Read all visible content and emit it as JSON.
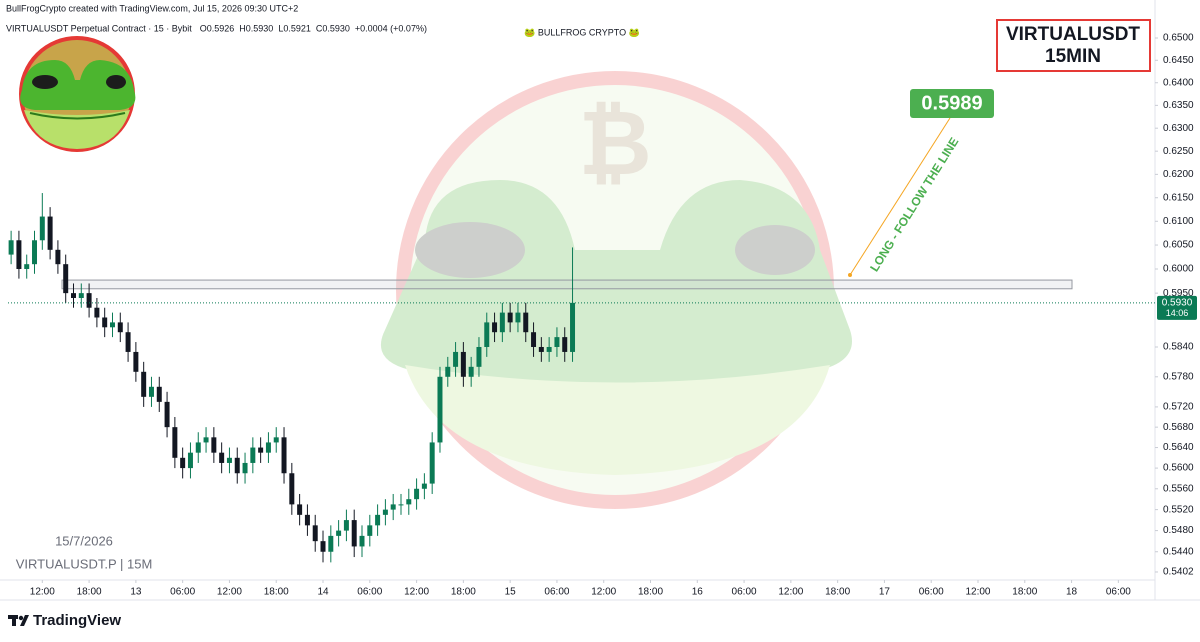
{
  "header": {
    "credit": "BullFrogCrypto created with TradingView.com, Jul 15, 2026 09:30 UTC+2",
    "symbol": "VIRTUALUSDT Perpetual Contract · 15 · Bybit",
    "ohlc": [
      "O0.5926",
      "H0.5930",
      "L0.5921",
      "C0.5930",
      "+0.0004 (+0.07%)"
    ],
    "watermark": "🐸 BULLFROG CRYPTO 🐸"
  },
  "chart_data": {
    "type": "candlestick",
    "log_scale": true,
    "title_box": [
      "VIRTUALUSDT",
      "15MIN"
    ],
    "date": "15/7/2026",
    "ticker": "VIRTUALUSDT.P | 15M",
    "target": "0.5989",
    "note": "LONG - FOLLOW THE LINE",
    "up_color": "#0b7a55",
    "down_color": "#131722",
    "x": [
      8,
      9,
      10,
      11,
      12,
      13,
      14,
      15,
      16,
      17,
      18,
      19,
      20,
      21,
      22,
      23,
      24,
      25,
      26,
      27,
      28,
      29,
      30,
      31,
      32,
      33,
      34,
      35,
      36,
      37,
      38,
      39,
      40,
      41,
      42,
      43,
      44,
      45,
      46,
      47,
      48,
      49,
      50,
      51,
      52,
      53,
      54,
      55,
      56,
      57,
      58,
      59,
      60,
      61,
      62,
      63,
      64,
      65,
      66,
      67,
      68,
      69,
      70,
      71,
      72,
      73,
      74,
      75,
      76,
      77,
      78,
      79,
      80
    ],
    "open": [
      0.603,
      0.606,
      0.6,
      0.601,
      0.606,
      0.611,
      0.604,
      0.601,
      0.595,
      0.594,
      0.595,
      0.592,
      0.59,
      0.588,
      0.589,
      0.587,
      0.583,
      0.579,
      0.574,
      0.576,
      0.573,
      0.568,
      0.562,
      0.56,
      0.563,
      0.565,
      0.566,
      0.563,
      0.561,
      0.562,
      0.559,
      0.561,
      0.564,
      0.563,
      0.565,
      0.566,
      0.559,
      0.553,
      0.551,
      0.549,
      0.546,
      0.544,
      0.547,
      0.548,
      0.55,
      0.545,
      0.547,
      0.549,
      0.551,
      0.552,
      0.553,
      0.553,
      0.554,
      0.556,
      0.557,
      0.565,
      0.578,
      0.58,
      0.583,
      0.578,
      0.58,
      0.584,
      0.589,
      0.587,
      0.591,
      0.589,
      0.591,
      0.587,
      0.584,
      0.583,
      0.584,
      0.586,
      0.583
    ],
    "high": [
      0.608,
      0.608,
      0.603,
      0.608,
      0.616,
      0.613,
      0.606,
      0.603,
      0.597,
      0.597,
      0.597,
      0.594,
      0.592,
      0.591,
      0.591,
      0.589,
      0.585,
      0.581,
      0.578,
      0.578,
      0.575,
      0.57,
      0.564,
      0.565,
      0.567,
      0.568,
      0.568,
      0.565,
      0.564,
      0.564,
      0.563,
      0.566,
      0.566,
      0.567,
      0.568,
      0.568,
      0.561,
      0.555,
      0.553,
      0.551,
      0.548,
      0.549,
      0.55,
      0.552,
      0.552,
      0.549,
      0.551,
      0.553,
      0.554,
      0.555,
      0.555,
      0.556,
      0.558,
      0.559,
      0.567,
      0.58,
      0.582,
      0.585,
      0.585,
      0.582,
      0.586,
      0.591,
      0.591,
      0.593,
      0.593,
      0.593,
      0.593,
      0.589,
      0.586,
      0.586,
      0.588,
      0.588,
      0.6045
    ],
    "low": [
      0.601,
      0.598,
      0.598,
      0.599,
      0.604,
      0.602,
      0.599,
      0.593,
      0.592,
      0.592,
      0.59,
      0.588,
      0.586,
      0.586,
      0.585,
      0.581,
      0.577,
      0.572,
      0.572,
      0.571,
      0.566,
      0.56,
      0.558,
      0.558,
      0.561,
      0.563,
      0.561,
      0.559,
      0.559,
      0.557,
      0.557,
      0.559,
      0.561,
      0.561,
      0.563,
      0.557,
      0.551,
      0.549,
      0.547,
      0.544,
      0.542,
      0.542,
      0.545,
      0.546,
      0.543,
      0.543,
      0.545,
      0.547,
      0.549,
      0.55,
      0.551,
      0.551,
      0.552,
      0.554,
      0.555,
      0.563,
      0.576,
      0.578,
      0.576,
      0.576,
      0.578,
      0.582,
      0.585,
      0.585,
      0.587,
      0.587,
      0.585,
      0.582,
      0.581,
      0.581,
      0.582,
      0.581,
      0.581
    ],
    "close": [
      0.606,
      0.6,
      0.601,
      0.606,
      0.611,
      0.604,
      0.601,
      0.595,
      0.594,
      0.595,
      0.592,
      0.59,
      0.588,
      0.589,
      0.587,
      0.583,
      0.579,
      0.574,
      0.576,
      0.573,
      0.568,
      0.562,
      0.56,
      0.563,
      0.565,
      0.566,
      0.563,
      0.561,
      0.562,
      0.559,
      0.561,
      0.564,
      0.563,
      0.565,
      0.566,
      0.559,
      0.553,
      0.551,
      0.549,
      0.546,
      0.544,
      0.547,
      0.548,
      0.55,
      0.545,
      0.547,
      0.549,
      0.551,
      0.552,
      0.553,
      0.553,
      0.554,
      0.556,
      0.557,
      0.565,
      0.578,
      0.58,
      0.583,
      0.578,
      0.58,
      0.584,
      0.589,
      0.587,
      0.591,
      0.589,
      0.591,
      0.587,
      0.584,
      0.583,
      0.584,
      0.586,
      0.583,
      0.593
    ],
    "zone": [
      0.5959,
      0.5977
    ],
    "last_price": {
      "value": 0.593,
      "label": "0.5930"
    },
    "countdown": "14:06",
    "xlim": [
      7.6,
      154.7
    ],
    "xticks": [
      {
        "value": 12,
        "label": "12:00"
      },
      {
        "value": 18,
        "label": "18:00"
      },
      {
        "value": 24,
        "label": "13"
      },
      {
        "value": 30,
        "label": "06:00"
      },
      {
        "value": 36,
        "label": "12:00"
      },
      {
        "value": 42,
        "label": "18:00"
      },
      {
        "value": 48,
        "label": "14"
      },
      {
        "value": 54,
        "label": "06:00"
      },
      {
        "value": 60,
        "label": "12:00"
      },
      {
        "value": 66,
        "label": "18:00"
      },
      {
        "value": 72,
        "label": "15"
      },
      {
        "value": 78,
        "label": "06:00"
      },
      {
        "value": 84,
        "label": "12:00"
      },
      {
        "value": 90,
        "label": "18:00"
      },
      {
        "value": 96,
        "label": "16"
      },
      {
        "value": 102,
        "label": "06:00"
      },
      {
        "value": 108,
        "label": "12:00"
      },
      {
        "value": 114,
        "label": "18:00"
      },
      {
        "value": 120,
        "label": "17"
      },
      {
        "value": 126,
        "label": "06:00"
      },
      {
        "value": 132,
        "label": "12:00"
      },
      {
        "value": 138,
        "label": "18:00"
      },
      {
        "value": 144,
        "label": "18"
      },
      {
        "value": 150,
        "label": "06:00"
      }
    ],
    "ylim": [
      0.5387,
      0.6552
    ],
    "yticks": [
      {
        "value": 0.65,
        "label": "0.6500"
      },
      {
        "value": 0.645,
        "label": "0.6450"
      },
      {
        "value": 0.64,
        "label": "0.6400"
      },
      {
        "value": 0.635,
        "label": "0.6350"
      },
      {
        "value": 0.63,
        "label": "0.6300"
      },
      {
        "value": 0.625,
        "label": "0.6250"
      },
      {
        "value": 0.62,
        "label": "0.6200"
      },
      {
        "value": 0.615,
        "label": "0.6150"
      },
      {
        "value": 0.61,
        "label": "0.6100"
      },
      {
        "value": 0.605,
        "label": "0.6050"
      },
      {
        "value": 0.6,
        "label": "0.6000"
      },
      {
        "value": 0.595,
        "label": "0.5950"
      },
      {
        "value": 0.584,
        "label": "0.5840"
      },
      {
        "value": 0.578,
        "label": "0.5780"
      },
      {
        "value": 0.572,
        "label": "0.5720"
      },
      {
        "value": 0.568,
        "label": "0.5680"
      },
      {
        "value": 0.564,
        "label": "0.5640"
      },
      {
        "value": 0.56,
        "label": "0.5600"
      },
      {
        "value": 0.556,
        "label": "0.5560"
      },
      {
        "value": 0.552,
        "label": "0.5520"
      },
      {
        "value": 0.548,
        "label": "0.5480"
      },
      {
        "value": 0.544,
        "label": "0.5440"
      },
      {
        "value": 0.5402,
        "label": "0.5402"
      }
    ]
  },
  "footer": {
    "brand": "TradingView"
  }
}
